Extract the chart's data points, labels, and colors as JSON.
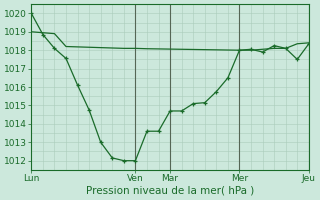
{
  "xlabel": "Pression niveau de la mer( hPa )",
  "bg_color": "#cce8dc",
  "grid_color": "#aaccbb",
  "line_color": "#1a6b2a",
  "vline_color": "#556655",
  "ylim": [
    1011.5,
    1020.5
  ],
  "yticks": [
    1012,
    1013,
    1014,
    1015,
    1016,
    1017,
    1018,
    1019,
    1020
  ],
  "day_labels": [
    "Lun",
    "Ven",
    "Mar",
    "Mer",
    "Jeu"
  ],
  "day_positions": [
    0,
    9,
    12,
    18,
    24
  ],
  "vline_positions": [
    9,
    12,
    18,
    24
  ],
  "line1_x": [
    0,
    1,
    2,
    3,
    4,
    5,
    6,
    7,
    8,
    9,
    10,
    11,
    12,
    13,
    14,
    15,
    16,
    17,
    18,
    19,
    20,
    21,
    22,
    23,
    24
  ],
  "line1_y": [
    1020.0,
    1018.85,
    1018.1,
    1017.55,
    1016.1,
    1014.75,
    1013.0,
    1012.15,
    1012.0,
    1012.0,
    1013.6,
    1013.6,
    1014.7,
    1014.7,
    1015.1,
    1015.15,
    1015.75,
    1016.5,
    1018.0,
    1018.05,
    1017.9,
    1018.25,
    1018.1,
    1017.5,
    1018.35
  ],
  "line2_x": [
    0,
    1,
    2,
    3,
    4,
    5,
    6,
    7,
    8,
    9,
    10,
    11,
    12,
    13,
    14,
    15,
    16,
    17,
    18,
    19,
    20,
    21,
    22,
    23,
    24
  ],
  "line2_y": [
    1019.0,
    1018.95,
    1018.9,
    1018.2,
    1018.18,
    1018.16,
    1018.14,
    1018.12,
    1018.1,
    1018.1,
    1018.08,
    1018.07,
    1018.06,
    1018.05,
    1018.04,
    1018.03,
    1018.02,
    1018.01,
    1018.0,
    1018.0,
    1018.05,
    1018.1,
    1018.1,
    1018.35,
    1018.4
  ]
}
